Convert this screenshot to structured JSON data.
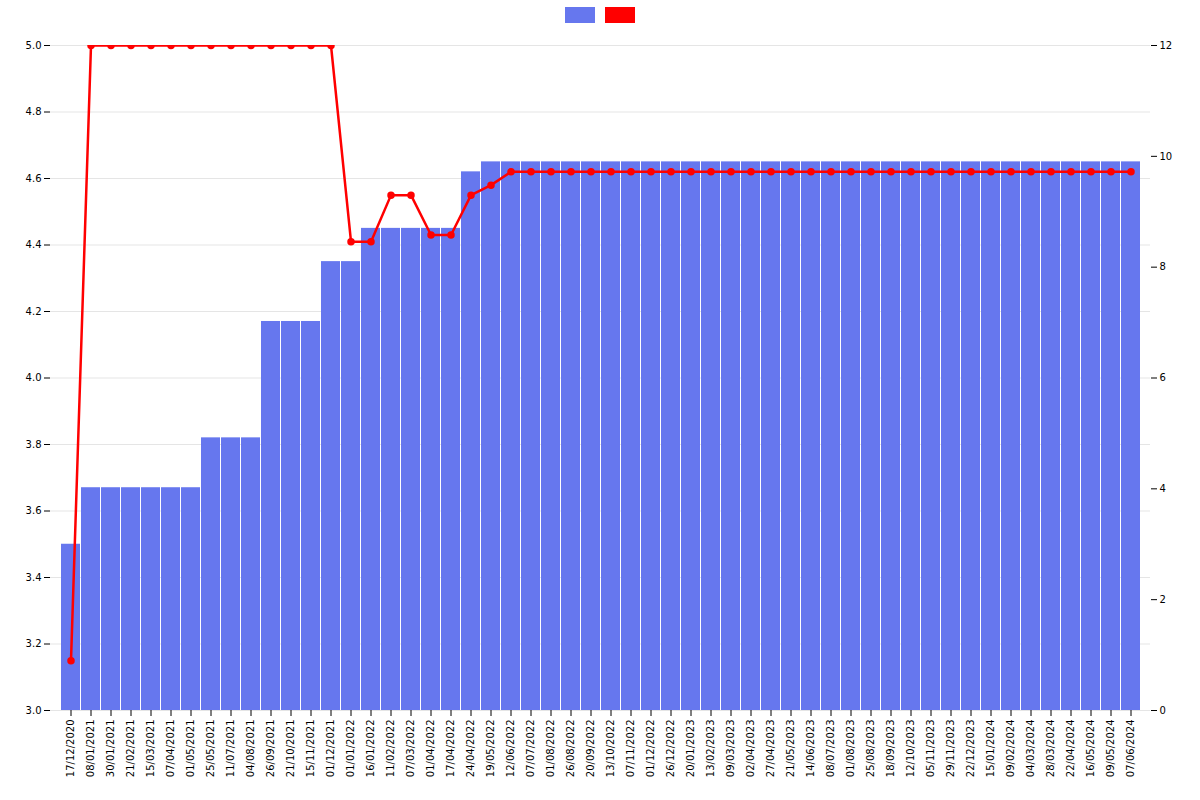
{
  "chart_data": {
    "type": "bar",
    "categories": [
      "17/12/2020",
      "08/01/2021",
      "30/01/2021",
      "21/02/2021",
      "15/03/2021",
      "07/04/2021",
      "01/05/2021",
      "25/05/2021",
      "11/07/2021",
      "04/08/2021",
      "26/09/2021",
      "21/10/2021",
      "15/11/2021",
      "01/12/2021",
      "01/01/2022",
      "16/01/2022",
      "11/02/2022",
      "07/03/2022",
      "01/04/2022",
      "17/04/2022",
      "24/04/2022",
      "19/05/2022",
      "12/06/2022",
      "07/07/2022",
      "01/08/2022",
      "26/08/2022",
      "20/09/2022",
      "13/10/2022",
      "07/11/2022",
      "01/12/2022",
      "26/12/2022",
      "20/01/2023",
      "13/02/2023",
      "09/03/2023",
      "02/04/2023",
      "27/04/2023",
      "21/05/2023",
      "14/06/2023",
      "08/07/2023",
      "01/08/2023",
      "25/08/2023",
      "18/09/2023",
      "12/10/2023",
      "05/11/2023",
      "29/11/2023",
      "22/12/2023",
      "15/01/2024",
      "09/02/2024",
      "04/03/2024",
      "28/03/2024",
      "22/04/2024",
      "16/05/2024",
      "09/05/2024",
      "07/06/2024"
    ],
    "series": [
      {
        "type": "bar",
        "color": "#6677ee",
        "values": [
          3.5,
          3.67,
          3.67,
          3.67,
          3.67,
          3.67,
          3.67,
          3.82,
          3.82,
          3.82,
          4.17,
          4.17,
          4.17,
          4.35,
          4.35,
          4.45,
          4.45,
          4.45,
          4.45,
          4.45,
          4.62,
          4.65,
          4.65,
          4.65,
          4.65,
          4.65,
          4.65,
          4.65,
          4.65,
          4.65,
          4.65,
          4.65,
          4.65,
          4.65,
          4.65,
          4.65,
          4.65,
          4.65,
          4.65,
          4.65,
          4.65,
          4.65,
          4.65,
          4.65,
          4.65,
          4.65,
          4.65,
          4.65,
          4.65,
          4.65,
          4.65,
          4.65,
          4.65,
          4.65
        ]
      },
      {
        "type": "line",
        "color": "#ff0000",
        "marker": "circle",
        "values": [
          3.15,
          5.0,
          5.0,
          5.0,
          5.0,
          5.0,
          5.0,
          5.0,
          5.0,
          5.0,
          5.0,
          5.0,
          5.0,
          5.0,
          4.41,
          4.41,
          4.55,
          4.55,
          4.43,
          4.43,
          4.55,
          4.58,
          4.62,
          4.62,
          4.62,
          4.62,
          4.62,
          4.62,
          4.62,
          4.62,
          4.62,
          4.62,
          4.62,
          4.62,
          4.62,
          4.62,
          4.62,
          4.62,
          4.62,
          4.62,
          4.62,
          4.62,
          4.62,
          4.62,
          4.62,
          4.62,
          4.62,
          4.62,
          4.62,
          4.62,
          4.62,
          4.62,
          4.62,
          4.62
        ]
      }
    ],
    "ylim": [
      3.0,
      5.0
    ],
    "yticks": [
      {
        "value": 3.0,
        "label": "3.0"
      },
      3.2,
      3.4,
      3.6,
      3.8,
      {
        "value": 4.0,
        "label": "4.0"
      },
      4.2,
      4.4,
      4.6,
      4.8,
      {
        "value": 5.0,
        "label": "5.0"
      }
    ],
    "y2lim": [
      0,
      12
    ],
    "y2ticks": [
      0,
      2,
      4,
      6,
      8,
      10,
      12
    ],
    "grid": true,
    "legend": "top"
  }
}
